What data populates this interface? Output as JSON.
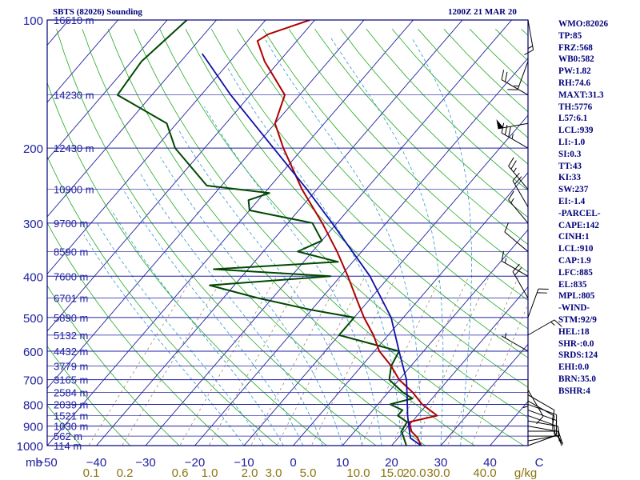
{
  "header": {
    "station_title": "SBTS (82026) Sounding",
    "datetime": "1200Z 21 MAR 20"
  },
  "indices": [
    "WMO:82026",
    "TP:85",
    "FRZ:568",
    "WB0:582",
    "PW:1.82",
    "RH:74.6",
    "MAXT:31.3",
    "TH:5776",
    "L57:6.1",
    "LCL:939",
    "LI:-1.0",
    "SI:0.3",
    "TT:43",
    "KI:33",
    "SW:237",
    "EI:-1.4",
    "-PARCEL-",
    "CAPE:142",
    "CINH:1",
    "LCL:910",
    "CAP:1.9",
    "LFC:885",
    "EL:835",
    "MPL:805",
    "-WIND-",
    "STM:92/9",
    "HEL:18",
    "SHR-:0.0",
    "SRDS:124",
    "EHI:0.0",
    "BRN:35.0",
    "BSHR:4"
  ],
  "colors": {
    "frame": "#00007a",
    "isobar": "#2020a0",
    "isotherm": "#2020a0",
    "dry_adiabat": "#22aa22",
    "moist_adiabat": "#3399cc",
    "mixing_ratio": "#a08868",
    "temperature": "#b00000",
    "dewpoint": "#004800",
    "parcel": "#1010a8",
    "axis_text": "#2020a0",
    "mixing_text": "#8a7410"
  },
  "chart_data": {
    "type": "skew-t",
    "title": "SBTS (82026) Sounding",
    "pressure_unit": "mb",
    "mixing_ratio_unit": "g/kg",
    "pressure_levels": [
      100,
      200,
      300,
      400,
      500,
      600,
      700,
      800,
      900,
      1000
    ],
    "pressure_tick_labels": [
      "100",
      "200",
      "300",
      "400",
      "500",
      "600",
      "700",
      "800",
      "900",
      "1000"
    ],
    "height_labels": [
      {
        "p": 100,
        "label": "16610 m"
      },
      {
        "p": 150,
        "label": "14230 m"
      },
      {
        "p": 200,
        "label": "12430 m"
      },
      {
        "p": 250,
        "label": "10900 m"
      },
      {
        "p": 300,
        "label": "9700 m"
      },
      {
        "p": 350,
        "label": "8590 m"
      },
      {
        "p": 400,
        "label": "7600 m"
      },
      {
        "p": 450,
        "label": "6701 m"
      },
      {
        "p": 500,
        "label": "5890 m"
      },
      {
        "p": 550,
        "label": "5132 m"
      },
      {
        "p": 600,
        "label": "4432 m"
      },
      {
        "p": 650,
        "label": "3779 m"
      },
      {
        "p": 700,
        "label": "3165 m"
      },
      {
        "p": 750,
        "label": "2584 m"
      },
      {
        "p": 800,
        "label": "2039 m"
      },
      {
        "p": 850,
        "label": "1521 m"
      },
      {
        "p": 900,
        "label": "1030 m"
      },
      {
        "p": 950,
        "label": "562 m"
      },
      {
        "p": 1000,
        "label": "114 m"
      }
    ],
    "temperature_ticks": [
      -50,
      -40,
      -30,
      -20,
      -10,
      0,
      10,
      20,
      30,
      40,
      50
    ],
    "temperature_tick_labels": [
      "−50",
      "−40",
      "−30",
      "−20",
      "−10",
      "0",
      "10",
      "20",
      "30",
      "40",
      "C"
    ],
    "mixing_ratios": [
      0.1,
      0.2,
      0.6,
      1.0,
      2.0,
      3.0,
      5.0,
      10.0,
      15.0,
      20.0,
      30.0,
      40.0
    ],
    "mixing_ratio_labels": [
      "0.1",
      "0.2",
      "0.6",
      "1.0",
      "2.0",
      "3.0",
      "5.0",
      "10.0",
      "15.0",
      "20.0",
      "30.0",
      "40.0"
    ],
    "temperature": [
      {
        "p": 1000,
        "t": 26
      },
      {
        "p": 960,
        "t": 24
      },
      {
        "p": 925,
        "t": 21.5
      },
      {
        "p": 880,
        "t": 19.5
      },
      {
        "p": 850,
        "t": 24
      },
      {
        "p": 800,
        "t": 19
      },
      {
        "p": 750,
        "t": 15
      },
      {
        "p": 700,
        "t": 10
      },
      {
        "p": 650,
        "t": 6
      },
      {
        "p": 600,
        "t": 1
      },
      {
        "p": 550,
        "t": -3
      },
      {
        "p": 500,
        "t": -8
      },
      {
        "p": 450,
        "t": -13
      },
      {
        "p": 400,
        "t": -18.5
      },
      {
        "p": 350,
        "t": -25
      },
      {
        "p": 300,
        "t": -33
      },
      {
        "p": 250,
        "t": -43
      },
      {
        "p": 200,
        "t": -54
      },
      {
        "p": 175,
        "t": -60
      },
      {
        "p": 150,
        "t": -63
      },
      {
        "p": 125,
        "t": -73
      },
      {
        "p": 112,
        "t": -78
      },
      {
        "p": 108,
        "t": -77
      },
      {
        "p": 100,
        "t": -71
      }
    ],
    "dewpoint": [
      {
        "p": 1000,
        "t": 23
      },
      {
        "p": 925,
        "t": 19.5
      },
      {
        "p": 880,
        "t": 19
      },
      {
        "p": 850,
        "t": 16
      },
      {
        "p": 825,
        "t": 16
      },
      {
        "p": 800,
        "t": 12.5
      },
      {
        "p": 775,
        "t": 16
      },
      {
        "p": 750,
        "t": 13
      },
      {
        "p": 700,
        "t": 8
      },
      {
        "p": 650,
        "t": 6
      },
      {
        "p": 600,
        "t": 5
      },
      {
        "p": 550,
        "t": -10
      },
      {
        "p": 500,
        "t": -10
      },
      {
        "p": 480,
        "t": -20
      },
      {
        "p": 450,
        "t": -33
      },
      {
        "p": 420,
        "t": -45
      },
      {
        "p": 400,
        "t": -22
      },
      {
        "p": 385,
        "t": -47
      },
      {
        "p": 370,
        "t": -23
      },
      {
        "p": 350,
        "t": -33
      },
      {
        "p": 330,
        "t": -30
      },
      {
        "p": 300,
        "t": -35
      },
      {
        "p": 280,
        "t": -50
      },
      {
        "p": 265,
        "t": -52
      },
      {
        "p": 255,
        "t": -49
      },
      {
        "p": 245,
        "t": -63
      },
      {
        "p": 200,
        "t": -76
      },
      {
        "p": 175,
        "t": -82
      },
      {
        "p": 150,
        "t": -97
      },
      {
        "p": 125,
        "t": -98
      },
      {
        "p": 100,
        "t": -96
      }
    ],
    "parcel": [
      {
        "p": 1000,
        "t": 26
      },
      {
        "p": 960,
        "t": 22.5
      },
      {
        "p": 910,
        "t": 20.5
      },
      {
        "p": 850,
        "t": 18
      },
      {
        "p": 800,
        "t": 16
      },
      {
        "p": 700,
        "t": 11.5
      },
      {
        "p": 600,
        "t": 5
      },
      {
        "p": 500,
        "t": -2.5
      },
      {
        "p": 400,
        "t": -14
      },
      {
        "p": 300,
        "t": -31
      },
      {
        "p": 250,
        "t": -42
      },
      {
        "p": 200,
        "t": -56
      },
      {
        "p": 150,
        "t": -74
      },
      {
        "p": 120,
        "t": -87
      }
    ],
    "wind_barbs": [
      {
        "p": 1000,
        "dir": 70,
        "kt": 10
      },
      {
        "p": 975,
        "dir": 80,
        "kt": 10
      },
      {
        "p": 950,
        "dir": 90,
        "kt": 10
      },
      {
        "p": 925,
        "dir": 90,
        "kt": 15
      },
      {
        "p": 900,
        "dir": 100,
        "kt": 15
      },
      {
        "p": 875,
        "dir": 100,
        "kt": 15
      },
      {
        "p": 850,
        "dir": 110,
        "kt": 15
      },
      {
        "p": 825,
        "dir": 110,
        "kt": 15
      },
      {
        "p": 800,
        "dir": 110,
        "kt": 10
      },
      {
        "p": 785,
        "dir": 120,
        "kt": 10
      },
      {
        "p": 760,
        "dir": 120,
        "kt": 10
      },
      {
        "p": 740,
        "dir": 150,
        "kt": 10
      },
      {
        "p": 700,
        "dir": 180,
        "kt": 5
      },
      {
        "p": 600,
        "dir": 300,
        "kt": 5
      },
      {
        "p": 550,
        "dir": 60,
        "kt": 15
      },
      {
        "p": 500,
        "dir": 20,
        "kt": 20
      },
      {
        "p": 450,
        "dir": 330,
        "kt": 20
      },
      {
        "p": 400,
        "dir": 300,
        "kt": 15
      },
      {
        "p": 350,
        "dir": 310,
        "kt": 10
      },
      {
        "p": 300,
        "dir": 320,
        "kt": 15
      },
      {
        "p": 275,
        "dir": 330,
        "kt": 20
      },
      {
        "p": 250,
        "dir": 320,
        "kt": 25
      },
      {
        "p": 200,
        "dir": 300,
        "kt": 35
      },
      {
        "p": 175,
        "dir": 260,
        "kt": 50
      },
      {
        "p": 150,
        "dir": 300,
        "kt": 20
      },
      {
        "p": 125,
        "dir": 200,
        "kt": 15
      },
      {
        "p": 100,
        "dir": 170,
        "kt": 15
      }
    ]
  }
}
